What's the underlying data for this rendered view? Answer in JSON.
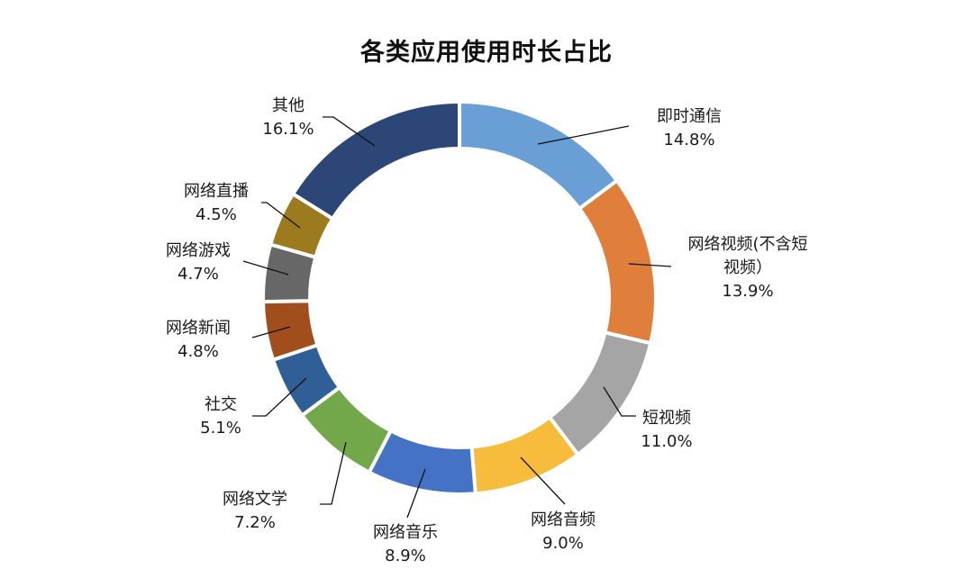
{
  "title": "各类应用使用时长占比",
  "chart_data": {
    "type": "pie",
    "variant": "donut",
    "title": "各类应用使用时长占比",
    "unit": "%",
    "start_angle_deg": 0,
    "direction": "clockwise",
    "categories": [
      "即时通信",
      "网络视频(不含短视频）",
      "短视频",
      "网络音频",
      "网络音乐",
      "网络文学",
      "社交",
      "网络新闻",
      "网络游戏",
      "网络直播",
      "其他"
    ],
    "values": [
      14.8,
      13.9,
      11.0,
      9.0,
      8.9,
      7.2,
      5.1,
      4.8,
      4.7,
      4.5,
      16.1
    ],
    "colors": [
      "#6a9fd6",
      "#e07f3c",
      "#a5a5a5",
      "#f7bc3b",
      "#4472c4",
      "#72a84a",
      "#2f5f96",
      "#a14e1c",
      "#676767",
      "#9c7a1e",
      "#2c4677"
    ],
    "legend": "none (leader-line labels)"
  },
  "labels": [
    {
      "name": "即时通信",
      "value": "14.8%"
    },
    {
      "name": "网络视频(不含短",
      "name2": "视频）",
      "value": "13.9%"
    },
    {
      "name": "短视频",
      "value": "11.0%"
    },
    {
      "name": "网络音频",
      "value": "9.0%"
    },
    {
      "name": "网络音乐",
      "value": "8.9%"
    },
    {
      "name": "网络文学",
      "value": "7.2%"
    },
    {
      "name": "社交",
      "value": "5.1%"
    },
    {
      "name": "网络新闻",
      "value": "4.8%"
    },
    {
      "name": "网络游戏",
      "value": "4.7%"
    },
    {
      "name": "网络直播",
      "value": "4.5%"
    },
    {
      "name": "其他",
      "value": "16.1%"
    }
  ]
}
